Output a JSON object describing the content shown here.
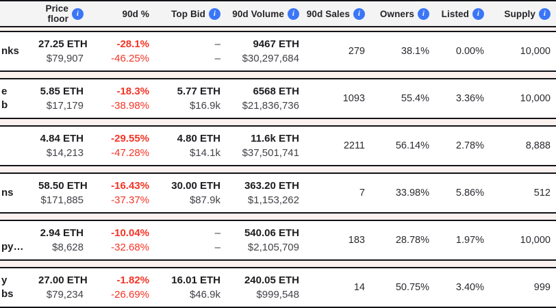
{
  "table": {
    "columns": [
      {
        "key": "price_floor",
        "label": "Price floor",
        "has_info": true
      },
      {
        "key": "pct_90d",
        "label": "90d %",
        "has_info": false
      },
      {
        "key": "top_bid",
        "label": "Top Bid",
        "has_info": true
      },
      {
        "key": "volume_90d",
        "label": "90d Volume",
        "has_info": true
      },
      {
        "key": "sales_90d",
        "label": "90d Sales",
        "has_info": true
      },
      {
        "key": "owners",
        "label": "Owners",
        "has_info": true
      },
      {
        "key": "listed",
        "label": "Listed",
        "has_info": true
      },
      {
        "key": "supply",
        "label": "Supply",
        "has_info": true
      }
    ],
    "info_icon_glyph": "i",
    "rows": [
      {
        "name_fragment_lines": [
          "nks"
        ],
        "floor_eth": "27.25 ETH",
        "floor_usd": "$79,907",
        "pct_1": "-28.1%",
        "pct_2": "-46.25%",
        "bid_eth": "–",
        "bid_usd": "–",
        "vol_eth": "9467 ETH",
        "vol_usd": "$30,297,684",
        "sales": "279",
        "owners": "38.1%",
        "listed": "0.00%",
        "supply": "10,000"
      },
      {
        "name_fragment_lines": [
          "e",
          "b"
        ],
        "floor_eth": "5.85 ETH",
        "floor_usd": "$17,179",
        "pct_1": "-18.3%",
        "pct_2": "-38.98%",
        "bid_eth": "5.77 ETH",
        "bid_usd": "$16.9k",
        "vol_eth": "6568 ETH",
        "vol_usd": "$21,836,736",
        "sales": "1093",
        "owners": "55.4%",
        "listed": "3.36%",
        "supply": "10,000"
      },
      {
        "name_fragment_lines": [],
        "floor_eth": "4.84 ETH",
        "floor_usd": "$14,213",
        "pct_1": "-29.55%",
        "pct_2": "-47.28%",
        "bid_eth": "4.80 ETH",
        "bid_usd": "$14.1k",
        "vol_eth": "11.6k ETH",
        "vol_usd": "$37,501,741",
        "sales": "2211",
        "owners": "56.14%",
        "listed": "2.78%",
        "supply": "8,888"
      },
      {
        "name_fragment_lines": [
          "ns"
        ],
        "floor_eth": "58.50 ETH",
        "floor_usd": "$171,885",
        "pct_1": "-16.43%",
        "pct_2": "-37.37%",
        "bid_eth": "30.00 ETH",
        "bid_usd": "$87.9k",
        "vol_eth": "363.20 ETH",
        "vol_usd": "$1,153,262",
        "sales": "7",
        "owners": "33.98%",
        "listed": "5.86%",
        "supply": "512"
      },
      {
        "name_fragment_lines": [
          "",
          "py…"
        ],
        "floor_eth": "2.94 ETH",
        "floor_usd": "$8,628",
        "pct_1": "-10.04%",
        "pct_2": "-32.68%",
        "bid_eth": "–",
        "bid_usd": "–",
        "vol_eth": "540.06 ETH",
        "vol_usd": "$2,105,709",
        "sales": "183",
        "owners": "28.78%",
        "listed": "1.97%",
        "supply": "10,000"
      },
      {
        "name_fragment_lines": [
          "y",
          "bs"
        ],
        "floor_eth": "27.00 ETH",
        "floor_usd": "$79,234",
        "pct_1": "-1.82%",
        "pct_2": "-26.69%",
        "bid_eth": "16.01 ETH",
        "bid_usd": "$46.9k",
        "vol_eth": "240.05 ETH",
        "vol_usd": "$999,548",
        "sales": "14",
        "owners": "50.75%",
        "listed": "3.40%",
        "supply": "999"
      }
    ]
  },
  "colors": {
    "accent_blue": "#3b76f7",
    "negative_red": "#f43325",
    "header_bg": "#f4f4f5",
    "row_border": "#121216",
    "page_bg": "#fbf2f0"
  }
}
